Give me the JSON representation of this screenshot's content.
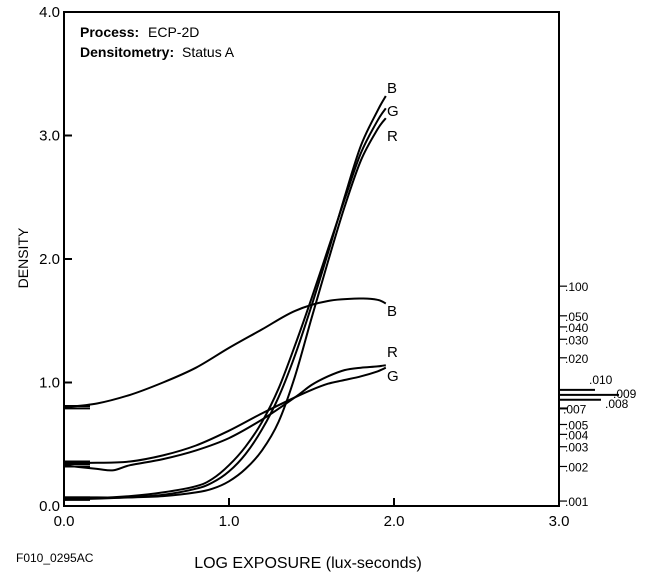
{
  "chart_data": {
    "type": "line",
    "info": {
      "process_label": "Process:",
      "process_value": "ECP-2D",
      "densitometry_label": "Densitometry:",
      "densitometry_value": "Status A"
    },
    "xlabel": "LOG EXPOSURE (lux-seconds)",
    "ylabel": "DENSITY",
    "xlim": [
      0,
      3
    ],
    "ylim": [
      0,
      4
    ],
    "x_ticks": [
      0,
      1,
      2,
      3
    ],
    "x_tick_labels": [
      "0.0",
      "1.0",
      "2.0",
      "3.0"
    ],
    "y_ticks": [
      0,
      1,
      2,
      3,
      4
    ],
    "y_tick_labels": [
      "0.0",
      "1.0",
      "2.0",
      "3.0",
      "4.0"
    ],
    "figure_id": "F010_0295AC",
    "series": [
      {
        "name": "B",
        "group": "upper",
        "x": [
          0,
          0.2,
          0.4,
          0.6,
          0.8,
          0.9,
          1.0,
          1.1,
          1.2,
          1.3,
          1.4,
          1.5,
          1.6,
          1.7,
          1.8,
          1.9,
          1.95
        ],
        "y": [
          0.05,
          0.06,
          0.07,
          0.09,
          0.14,
          0.19,
          0.28,
          0.42,
          0.62,
          0.88,
          1.22,
          1.62,
          2.05,
          2.5,
          2.92,
          3.2,
          3.32
        ]
      },
      {
        "name": "G",
        "group": "upper",
        "x": [
          0,
          0.2,
          0.4,
          0.6,
          0.8,
          0.9,
          1.0,
          1.1,
          1.2,
          1.3,
          1.4,
          1.5,
          1.6,
          1.7,
          1.8,
          1.9,
          1.95
        ],
        "y": [
          0.06,
          0.065,
          0.08,
          0.11,
          0.16,
          0.22,
          0.33,
          0.48,
          0.68,
          0.95,
          1.3,
          1.68,
          2.08,
          2.48,
          2.86,
          3.12,
          3.22
        ]
      },
      {
        "name": "R",
        "group": "upper",
        "x": [
          0,
          0.2,
          0.4,
          0.6,
          0.8,
          0.9,
          1.0,
          1.1,
          1.2,
          1.3,
          1.4,
          1.5,
          1.6,
          1.7,
          1.8,
          1.9,
          1.95
        ],
        "y": [
          0.07,
          0.07,
          0.07,
          0.08,
          0.11,
          0.14,
          0.2,
          0.3,
          0.45,
          0.68,
          1.05,
          1.52,
          1.98,
          2.42,
          2.8,
          3.05,
          3.14
        ]
      },
      {
        "name": "B",
        "group": "lower",
        "x": [
          0,
          0.2,
          0.4,
          0.6,
          0.8,
          1.0,
          1.2,
          1.4,
          1.6,
          1.8,
          1.9,
          1.95
        ],
        "y": [
          0.8,
          0.83,
          0.9,
          1.0,
          1.12,
          1.28,
          1.43,
          1.58,
          1.66,
          1.68,
          1.67,
          1.64
        ]
      },
      {
        "name": "R",
        "group": "lower",
        "x": [
          0,
          0.2,
          0.3,
          0.4,
          0.6,
          0.8,
          1.0,
          1.2,
          1.4,
          1.5,
          1.6,
          1.7,
          1.8,
          1.9,
          1.95
        ],
        "y": [
          0.33,
          0.3,
          0.29,
          0.33,
          0.38,
          0.45,
          0.55,
          0.7,
          0.88,
          0.98,
          1.05,
          1.1,
          1.12,
          1.13,
          1.14
        ]
      },
      {
        "name": "G",
        "group": "lower",
        "x": [
          0,
          0.2,
          0.4,
          0.6,
          0.8,
          1.0,
          1.2,
          1.4,
          1.5,
          1.6,
          1.7,
          1.8,
          1.9,
          1.95
        ],
        "y": [
          0.35,
          0.35,
          0.36,
          0.41,
          0.49,
          0.61,
          0.75,
          0.88,
          0.94,
          0.99,
          1.02,
          1.05,
          1.09,
          1.12
        ]
      }
    ],
    "right_scale": {
      "ticks": [
        {
          "label": ".100",
          "density": 1.78
        },
        {
          "label": ".050",
          "density": 1.54
        },
        {
          "label": ".040",
          "density": 1.45
        },
        {
          "label": ".030",
          "density": 1.35
        },
        {
          "label": ".020",
          "density": 1.2
        },
        {
          "label": ".010",
          "density": 0.94
        },
        {
          "label": ".009",
          "density": 0.9
        },
        {
          "label": ".008",
          "density": 0.86
        },
        {
          "label": ".007",
          "density": 0.79
        },
        {
          "label": ".005",
          "density": 0.66
        },
        {
          "label": ".004",
          "density": 0.58
        },
        {
          "label": ".003",
          "density": 0.48
        },
        {
          "label": ".002",
          "density": 0.32
        },
        {
          "label": ".001",
          "density": 0.04
        }
      ]
    },
    "grid": false,
    "legend": "none"
  }
}
